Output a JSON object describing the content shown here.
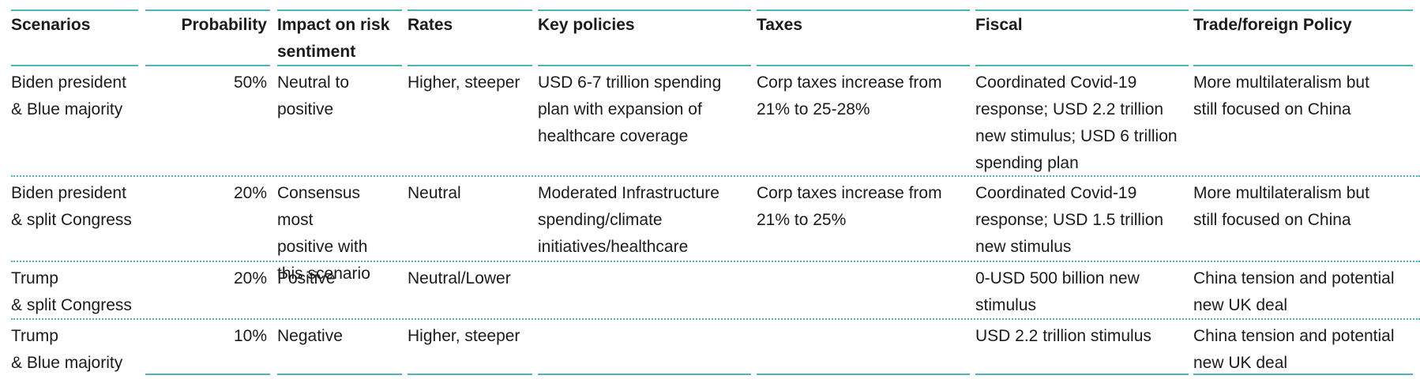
{
  "header": {
    "scenarios": "Scenarios",
    "probability": "Probability",
    "impact_line1": "Impact on risk",
    "impact_line2": "sentiment",
    "rates": "Rates",
    "key_policies": "Key policies",
    "taxes": "Taxes",
    "fiscal": "Fiscal",
    "trade": "Trade/foreign Policy"
  },
  "rows": [
    {
      "scenario": [
        "Biden president",
        "& Blue majority"
      ],
      "probability": "50%",
      "impact": [
        "Neutral to",
        "positive"
      ],
      "rates": [
        "Higher, steeper"
      ],
      "key_policies": [
        "USD 6-7 trillion spending",
        "plan with expansion of",
        "healthcare coverage"
      ],
      "taxes": [
        "Corp taxes increase from",
        "21% to 25-28%"
      ],
      "fiscal": [
        "Coordinated Covid-19",
        "response; USD 2.2 trillion",
        "new stimulus; USD 6 trillion",
        "spending plan"
      ],
      "trade": [
        "More multilateralism but",
        "still focused on China"
      ]
    },
    {
      "scenario": [
        "Biden president",
        "& split Congress"
      ],
      "probability": "20%",
      "impact": [
        "Consensus most",
        "positive with",
        "this scenario"
      ],
      "rates": [
        "Neutral"
      ],
      "key_policies": [
        "Moderated Infrastructure",
        "spending/climate",
        "initiatives/healthcare"
      ],
      "taxes": [
        "Corp taxes increase from",
        "21% to 25%"
      ],
      "fiscal": [
        "Coordinated Covid-19",
        "response; USD 1.5 trillion",
        "new stimulus"
      ],
      "trade": [
        "More multilateralism but",
        "still focused on China"
      ]
    },
    {
      "scenario": [
        "Trump",
        "& split Congress"
      ],
      "probability": "20%",
      "impact": [
        "Positive"
      ],
      "rates": [
        "Neutral/Lower"
      ],
      "key_policies": [],
      "taxes": [],
      "fiscal": [
        "0-USD 500 billion new",
        "stimulus"
      ],
      "trade": [
        "China tension and potential",
        "new UK deal"
      ]
    },
    {
      "scenario": [
        "Trump",
        "& Blue majority"
      ],
      "probability": "10%",
      "impact": [
        "Negative"
      ],
      "rates": [
        "Higher, steeper"
      ],
      "key_policies": [],
      "taxes": [],
      "fiscal": [
        "USD 2.2 trillion stimulus"
      ],
      "trade": [
        "China tension and potential",
        "new UK deal"
      ]
    }
  ],
  "colors": {
    "rule": "#4fb3bf",
    "text": "#1b1b1b"
  }
}
